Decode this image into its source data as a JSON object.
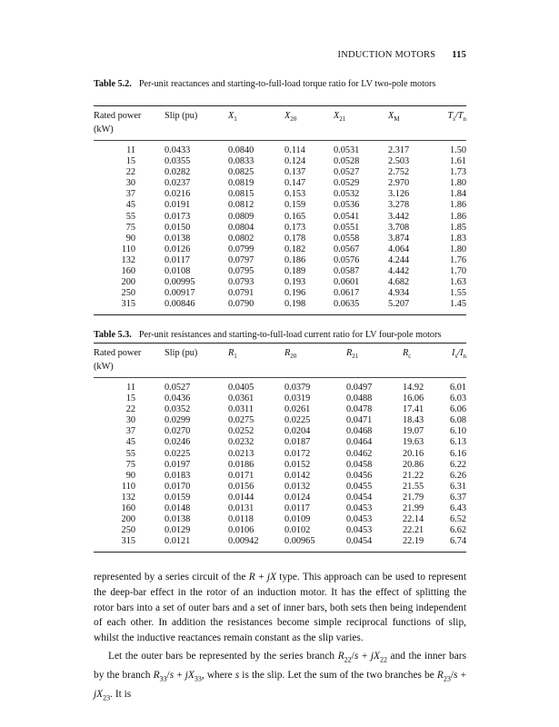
{
  "running_head": {
    "title": "INDUCTION MOTORS",
    "page_number": "115"
  },
  "table1": {
    "label": "Table 5.2.",
    "caption": "Per-unit reactances and starting-to-full-load torque ratio for LV two-pole motors",
    "headers": [
      {
        "base": "Rated power",
        "line2": "(kW)"
      },
      {
        "base": "Slip (pu)"
      },
      {
        "base": "X",
        "sub": "1",
        "italic": true
      },
      {
        "base": "X",
        "sub": "20",
        "italic": true
      },
      {
        "base": "X",
        "sub": "21",
        "italic": true
      },
      {
        "base": "X",
        "sub": "M",
        "italic": true
      },
      {
        "base": "T",
        "sub": "s",
        "base2": "/T",
        "sub2": "n",
        "italic": true
      }
    ],
    "rows": [
      [
        "11",
        "0.0433",
        "0.0840",
        "0.114",
        "0.0531",
        "2.317",
        "1.50"
      ],
      [
        "15",
        "0.0355",
        "0.0833",
        "0.124",
        "0.0528",
        "2.503",
        "1.61"
      ],
      [
        "22",
        "0.0282",
        "0.0825",
        "0.137",
        "0.0527",
        "2.752",
        "1.73"
      ],
      [
        "30",
        "0.0237",
        "0.0819",
        "0.147",
        "0.0529",
        "2.970",
        "1.80"
      ],
      [
        "37",
        "0.0216",
        "0.0815",
        "0.153",
        "0.0532",
        "3.126",
        "1.84"
      ],
      [
        "45",
        "0.0191",
        "0.0812",
        "0.159",
        "0.0536",
        "3.278",
        "1.86"
      ],
      [
        "55",
        "0.0173",
        "0.0809",
        "0.165",
        "0.0541",
        "3.442",
        "1.86"
      ],
      [
        "75",
        "0.0150",
        "0.0804",
        "0.173",
        "0.0551",
        "3.708",
        "1.85"
      ],
      [
        "90",
        "0.0138",
        "0.0802",
        "0.178",
        "0.0558",
        "3.874",
        "1.83"
      ],
      [
        "110",
        "0.0126",
        "0.0799",
        "0.182",
        "0.0567",
        "4.064",
        "1.80"
      ],
      [
        "132",
        "0.0117",
        "0.0797",
        "0.186",
        "0.0576",
        "4.244",
        "1.76"
      ],
      [
        "160",
        "0.0108",
        "0.0795",
        "0.189",
        "0.0587",
        "4.442",
        "1.70"
      ],
      [
        "200",
        "0.00995",
        "0.0793",
        "0.193",
        "0.0601",
        "4.682",
        "1.63"
      ],
      [
        "250",
        "0.00917",
        "0.0791",
        "0.196",
        "0.0617",
        "4.934",
        "1.55"
      ],
      [
        "315",
        "0.00846",
        "0.0790",
        "0.198",
        "0.0635",
        "5.207",
        "1.45"
      ]
    ]
  },
  "table2": {
    "label": "Table 5.3.",
    "caption": "Per-unit resistances and starting-to-full-load current ratio for LV four-pole motors",
    "headers": [
      {
        "base": "Rated power",
        "line2": "(kW)"
      },
      {
        "base": "Slip (pu)"
      },
      {
        "base": "R",
        "sub": "1",
        "italic": true
      },
      {
        "base": "R",
        "sub": "20",
        "italic": true
      },
      {
        "base": "R",
        "sub": "21",
        "italic": true
      },
      {
        "base": "R",
        "sub": "c",
        "italic": true
      },
      {
        "base": "I",
        "sub": "s",
        "base2": "/I",
        "sub2": "n",
        "italic": true
      }
    ],
    "rows": [
      [
        "11",
        "0.0527",
        "0.0405",
        "0.0379",
        "0.0497",
        "14.92",
        "6.01"
      ],
      [
        "15",
        "0.0436",
        "0.0361",
        "0.0319",
        "0.0488",
        "16.06",
        "6.03"
      ],
      [
        "22",
        "0.0352",
        "0.0311",
        "0.0261",
        "0.0478",
        "17.41",
        "6.06"
      ],
      [
        "30",
        "0.0299",
        "0.0275",
        "0.0225",
        "0.0471",
        "18.43",
        "6.08"
      ],
      [
        "37",
        "0.0270",
        "0.0252",
        "0.0204",
        "0.0468",
        "19.07",
        "6.10"
      ],
      [
        "45",
        "0.0246",
        "0.0232",
        "0.0187",
        "0.0464",
        "19.63",
        "6.13"
      ],
      [
        "55",
        "0.0225",
        "0.0213",
        "0.0172",
        "0.0462",
        "20.16",
        "6.16"
      ],
      [
        "75",
        "0.0197",
        "0.0186",
        "0.0152",
        "0.0458",
        "20.86",
        "6.22"
      ],
      [
        "90",
        "0.0183",
        "0.0171",
        "0.0142",
        "0.0456",
        "21.22",
        "6.26"
      ],
      [
        "110",
        "0.0170",
        "0.0156",
        "0.0132",
        "0.0455",
        "21.55",
        "6.31"
      ],
      [
        "132",
        "0.0159",
        "0.0144",
        "0.0124",
        "0.0454",
        "21.79",
        "6.37"
      ],
      [
        "160",
        "0.0148",
        "0.0131",
        "0.0117",
        "0.0453",
        "21.99",
        "6.43"
      ],
      [
        "200",
        "0.0138",
        "0.0118",
        "0.0109",
        "0.0453",
        "22.14",
        "6.52"
      ],
      [
        "250",
        "0.0129",
        "0.0106",
        "0.0102",
        "0.0453",
        "22.21",
        "6.62"
      ],
      [
        "315",
        "0.0121",
        "0.00942",
        "0.00965",
        "0.0454",
        "22.19",
        "6.74"
      ]
    ]
  },
  "paragraphs": [
    [
      {
        "t": "represented by a series circuit of the "
      },
      {
        "t": "R",
        "i": true
      },
      {
        "t": " + "
      },
      {
        "t": "jX",
        "i": true
      },
      {
        "t": " type. This approach can be used to represent the deep-bar effect in the rotor of an induction motor. It has the effect of splitting the rotor bars into a set of outer bars and a set of inner bars, both sets then being independent of each other. In addition the resistances become simple reciprocal functions of slip, whilst the inductive reactances remain constant as the slip varies."
      }
    ],
    [
      {
        "t": "Let the outer bars be represented by the series branch "
      },
      {
        "t": "R",
        "i": true
      },
      {
        "t": "22",
        "sub": true
      },
      {
        "t": "/",
        "i": false
      },
      {
        "t": "s",
        "i": true
      },
      {
        "t": " + "
      },
      {
        "t": "jX",
        "i": true
      },
      {
        "t": "22",
        "sub": true
      },
      {
        "t": " and the inner bars by the branch "
      },
      {
        "t": "R",
        "i": true
      },
      {
        "t": "33",
        "sub": true
      },
      {
        "t": "/"
      },
      {
        "t": "s",
        "i": true
      },
      {
        "t": " + "
      },
      {
        "t": "jX",
        "i": true
      },
      {
        "t": "33",
        "sub": true
      },
      {
        "t": ", where "
      },
      {
        "t": "s",
        "i": true
      },
      {
        "t": " is the slip. Let the sum of the two branches be "
      },
      {
        "t": "R",
        "i": true
      },
      {
        "t": "23",
        "sub": true
      },
      {
        "t": "/"
      },
      {
        "t": "s",
        "i": true
      },
      {
        "t": " + "
      },
      {
        "t": "jX",
        "i": true
      },
      {
        "t": "23",
        "sub": true
      },
      {
        "t": ". It is"
      }
    ]
  ]
}
